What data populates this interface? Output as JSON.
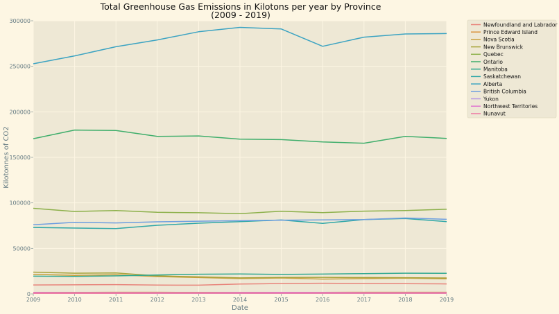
{
  "chart_data": {
    "type": "line",
    "title_line1": "Total Greenhouse Gas Emissions in Kilotons per year by Province",
    "title_line2": "(2009 - 2019)",
    "xlabel": "Date",
    "ylabel": "Kilotonnes of CO2",
    "x": [
      2009,
      2010,
      2011,
      2012,
      2013,
      2014,
      2015,
      2016,
      2017,
      2018,
      2019
    ],
    "xlim": [
      2009,
      2019
    ],
    "ylim": [
      0,
      300000
    ],
    "yticks": [
      0,
      50000,
      100000,
      150000,
      200000,
      250000,
      300000
    ],
    "ytick_labels": [
      "0",
      "50000",
      "100000",
      "150000",
      "200000",
      "250000",
      "300000"
    ],
    "xtick_labels": [
      "2009",
      "2010",
      "2011",
      "2012",
      "2013",
      "2014",
      "2015",
      "2016",
      "2017",
      "2018",
      "2019"
    ],
    "grid": true,
    "legend_position": "outside-right",
    "series": [
      {
        "name": "Newfoundland and Labrador",
        "color": "#e8837a",
        "values": [
          9800,
          10000,
          10200,
          9700,
          9600,
          10800,
          11400,
          11700,
          11400,
          11200,
          11000
        ]
      },
      {
        "name": "Prince Edward Island",
        "color": "#d8923b",
        "values": [
          1700,
          1700,
          1800,
          1800,
          1700,
          1700,
          1700,
          1700,
          1800,
          1800,
          1800
        ]
      },
      {
        "name": "Nova Scotia",
        "color": "#c9a03d",
        "values": [
          21500,
          20300,
          21000,
          19000,
          18000,
          16800,
          17500,
          16300,
          16800,
          17300,
          16600
        ]
      },
      {
        "name": "New Brunswick",
        "color": "#a7a33b",
        "values": [
          23900,
          22800,
          23100,
          19800,
          18700,
          17600,
          18100,
          18200,
          18000,
          17800,
          17500
        ]
      },
      {
        "name": "Quebec",
        "color": "#8cb04a",
        "values": [
          94000,
          90500,
          91600,
          89600,
          89200,
          88100,
          90800,
          89300,
          90900,
          91500,
          93000
        ]
      },
      {
        "name": "Ontario",
        "color": "#3fae6b",
        "values": [
          170500,
          180000,
          179500,
          173000,
          173500,
          170000,
          169500,
          167000,
          165500,
          173000,
          170800
        ]
      },
      {
        "name": "Manitoba",
        "color": "#2ea890",
        "values": [
          19500,
          19200,
          19800,
          20800,
          21600,
          21900,
          21400,
          21800,
          22300,
          22800,
          22600
        ]
      },
      {
        "name": "Saskatchewan",
        "color": "#2fa7a8",
        "values": [
          73000,
          72300,
          71700,
          75400,
          77700,
          79400,
          81200,
          77500,
          81600,
          82800,
          79400
        ]
      },
      {
        "name": "Alberta",
        "color": "#3ba3c2",
        "values": [
          252800,
          261500,
          271500,
          279000,
          288000,
          292800,
          291000,
          272000,
          282000,
          285500,
          286000
        ]
      },
      {
        "name": "British Columbia",
        "color": "#6d9ee0",
        "values": [
          76000,
          78600,
          78000,
          79200,
          79900,
          80400,
          81000,
          81300,
          81600,
          83400,
          81900
        ]
      },
      {
        "name": "Yukon",
        "color": "#b996e3",
        "values": [
          600,
          600,
          600,
          600,
          600,
          600,
          600,
          600,
          600,
          600,
          600
        ]
      },
      {
        "name": "Northwest Territories",
        "color": "#e077d0",
        "values": [
          1500,
          1400,
          1400,
          1400,
          1400,
          1500,
          1600,
          1500,
          1400,
          1400,
          1400
        ]
      },
      {
        "name": "Nunavut",
        "color": "#ee7fa6",
        "values": [
          600,
          600,
          600,
          700,
          700,
          700,
          700,
          700,
          700,
          700,
          700
        ]
      }
    ]
  }
}
